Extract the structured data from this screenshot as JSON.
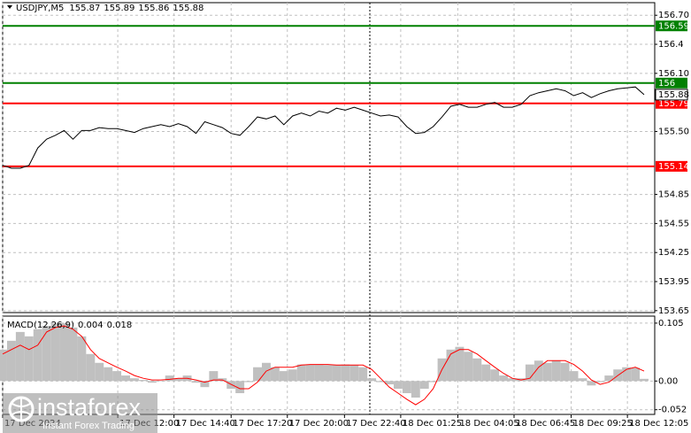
{
  "chart_data": [
    {
      "type": "line",
      "title": "USDJPY,M5",
      "ohlc": [
        155.87,
        155.89,
        155.86,
        155.88
      ],
      "color": "#000000",
      "values": [
        155.15,
        155.12,
        155.12,
        155.15,
        155.33,
        155.42,
        155.46,
        155.51,
        155.42,
        155.51,
        155.51,
        155.54,
        155.53,
        155.53,
        155.51,
        155.49,
        155.53,
        155.55,
        155.57,
        155.55,
        155.58,
        155.55,
        155.48,
        155.6,
        155.57,
        155.54,
        155.48,
        155.46,
        155.55,
        155.65,
        155.63,
        155.66,
        155.57,
        155.66,
        155.69,
        155.66,
        155.71,
        155.69,
        155.74,
        155.72,
        155.75,
        155.72,
        155.69,
        155.66,
        155.67,
        155.65,
        155.55,
        155.48,
        155.49,
        155.55,
        155.65,
        155.76,
        155.78,
        155.75,
        155.75,
        155.78,
        155.8,
        155.75,
        155.75,
        155.78,
        155.87,
        155.9,
        155.92,
        155.94,
        155.92,
        155.87,
        155.9,
        155.85,
        155.89,
        155.92,
        155.94,
        155.95,
        155.96,
        155.88
      ],
      "levels": [
        {
          "value": 156.59,
          "color": "#008000"
        },
        {
          "value": 156.0,
          "color": "#008000"
        },
        {
          "value": 155.79,
          "color": "#ff0000"
        },
        {
          "value": 155.14,
          "color": "#ff0000"
        }
      ],
      "ylim": [
        153.63,
        156.83
      ],
      "yticks": [
        {
          "value": 156.7,
          "label": "156.70"
        },
        156.4,
        {
          "value": 156.1,
          "label": "156.10"
        },
        {
          "value": 155.5,
          "label": "155.50"
        },
        154.85,
        154.55,
        154.25,
        153.95,
        {
          "value": 153.65,
          "label": "153.65"
        }
      ],
      "xlim": [
        0,
        73
      ],
      "xticks": [
        {
          "value": 0,
          "label": "17 Dec 2024"
        },
        {
          "value": 13.1,
          "label": "17 Dec 12:00"
        },
        {
          "value": 19.5,
          "label": "17 Dec 14:40"
        },
        {
          "value": 26,
          "label": "17 Dec 17:20"
        },
        {
          "value": 32.4,
          "label": "17 Dec 20:00"
        },
        {
          "value": 38.9,
          "label": "17 Dec 22:40"
        },
        {
          "value": 45.3,
          "label": "18 Dec 01:25"
        },
        {
          "value": 51.8,
          "label": "18 Dec 04:05"
        },
        {
          "value": 58.2,
          "label": "18 Dec 06:45"
        },
        {
          "value": 64.7,
          "label": "18 Dec 09:25"
        },
        {
          "value": 71.1,
          "label": "18 Dec 12:05"
        }
      ],
      "grid": true
    },
    {
      "type": "macd",
      "title": "MACD(12,26,9)",
      "histogram": {
        "color": "#c0c0c0",
        "values": [
          0.057,
          0.073,
          0.089,
          0.081,
          0.094,
          0.1,
          0.105,
          0.105,
          0.097,
          0.081,
          0.049,
          0.033,
          0.025,
          0.018,
          0.01,
          0.005,
          0.002,
          -0.003,
          0.0,
          0.01,
          0.005,
          0.01,
          -0.003,
          -0.011,
          0.018,
          0.005,
          -0.014,
          -0.022,
          -0.002,
          0.025,
          0.033,
          0.025,
          0.018,
          0.021,
          0.03,
          0.03,
          0.03,
          0.029,
          0.029,
          0.03,
          0.029,
          0.025,
          0.005,
          -0.002,
          -0.006,
          -0.014,
          -0.022,
          -0.03,
          -0.014,
          -0.002,
          0.041,
          0.057,
          0.062,
          0.053,
          0.041,
          0.03,
          0.021,
          0.01,
          0.005,
          0.005,
          0.03,
          0.037,
          0.033,
          0.037,
          0.033,
          0.018,
          0.005,
          -0.008,
          -0.002,
          0.01,
          0.021,
          0.025,
          0.024,
          0.004
        ]
      },
      "signal": {
        "color": "#ff0000",
        "values": [
          0.049,
          0.057,
          0.065,
          0.057,
          0.065,
          0.089,
          0.097,
          0.1,
          0.094,
          0.081,
          0.057,
          0.041,
          0.033,
          0.025,
          0.018,
          0.01,
          0.005,
          0.002,
          0.002,
          0.003,
          0.005,
          0.005,
          0.002,
          -0.002,
          0.002,
          0.002,
          -0.006,
          -0.014,
          -0.014,
          -0.002,
          0.018,
          0.025,
          0.025,
          0.025,
          0.029,
          0.03,
          0.03,
          0.03,
          0.029,
          0.029,
          0.029,
          0.029,
          0.021,
          0.005,
          -0.011,
          -0.022,
          -0.033,
          -0.043,
          -0.033,
          -0.014,
          0.021,
          0.049,
          0.057,
          0.057,
          0.049,
          0.037,
          0.025,
          0.014,
          0.005,
          0.002,
          0.005,
          0.025,
          0.037,
          0.037,
          0.037,
          0.03,
          0.018,
          0.002,
          -0.006,
          -0.002,
          0.01,
          0.021,
          0.025,
          0.018
        ]
      },
      "ylim": [
        -0.0605,
        0.1177
      ],
      "yticks": [
        0.105,
        {
          "value": 0,
          "label": "0.00"
        },
        -0.052
      ]
    }
  ],
  "watermark": {
    "brand": "instaforex",
    "tagline": "Instant Forex Trading"
  }
}
